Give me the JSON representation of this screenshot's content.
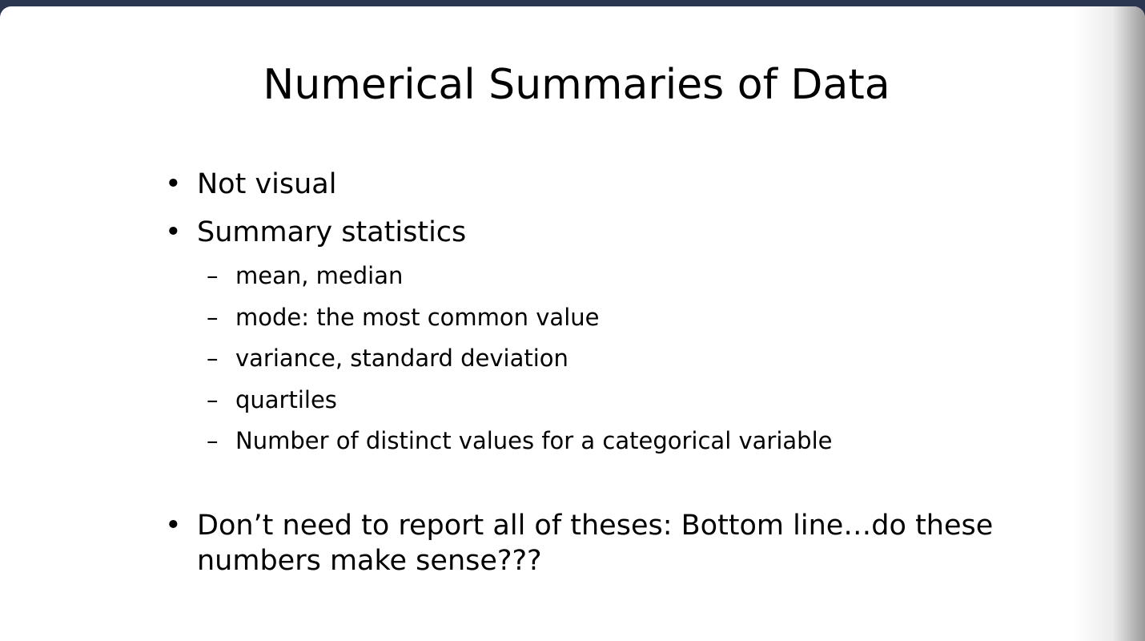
{
  "slide": {
    "title": "Numerical Summaries of Data",
    "bullets": [
      {
        "marker": "•",
        "text": "Not visual"
      },
      {
        "marker": "•",
        "text": "Summary statistics"
      }
    ],
    "sub_bullets": [
      {
        "marker": "–",
        "text": "mean, median"
      },
      {
        "marker": "–",
        "text": "mode: the most common value"
      },
      {
        "marker": "–",
        "text": "variance, standard deviation"
      },
      {
        "marker": "–",
        "text": "quartiles"
      },
      {
        "marker": "–",
        "text": "Number of distinct values for a categorical variable"
      }
    ],
    "final_bullet": {
      "marker": "•",
      "text": "Don’t need to report all of theses:  Bottom line…do these numbers make sense???"
    }
  }
}
